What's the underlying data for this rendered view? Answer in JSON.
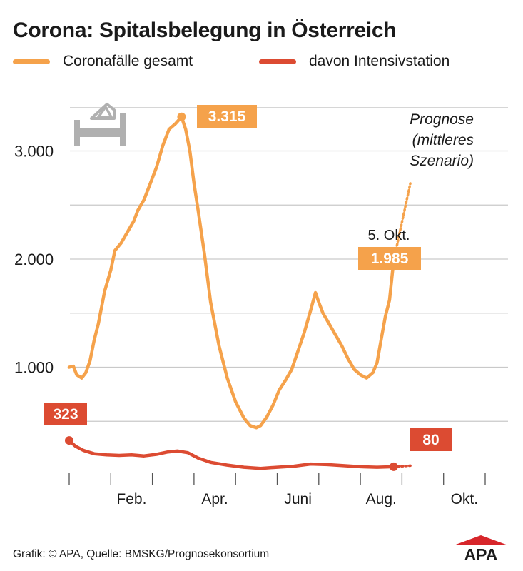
{
  "title": "Corona: Spitalsbelegung in Österreich",
  "colors": {
    "total": "#f5a24b",
    "icu": "#dc4b32",
    "grid": "#c9c9c9",
    "label_text": "#ffffff",
    "icon": "#b0b0b0",
    "logo_red": "#d7262b"
  },
  "footer": "Grafik: © APA, Quelle: BMSKG/Prognosekonsortium",
  "logo_text": "APA",
  "icon": "hospital-bed-icon",
  "chart_data": {
    "type": "line",
    "title": "Corona: Spitalsbelegung in Österreich",
    "xlabel": "",
    "ylabel": "",
    "ylim": [
      0,
      3400
    ],
    "grid": true,
    "legend_position": "top",
    "y_ticks": [
      1000,
      2000,
      3000
    ],
    "y_tick_labels": [
      "1.000",
      "2.000",
      "3.000"
    ],
    "x_ticks": [
      "Feb.",
      "Apr.",
      "Juni",
      "Aug.",
      "Okt."
    ],
    "series": [
      {
        "name": "Coronafälle gesamt",
        "color": "#f5a24b",
        "x_unit": "month index (Jan 1 = 0)",
        "points": [
          [
            0.0,
            1000
          ],
          [
            0.1,
            1010
          ],
          [
            0.18,
            930
          ],
          [
            0.3,
            900
          ],
          [
            0.4,
            950
          ],
          [
            0.5,
            1060
          ],
          [
            0.6,
            1250
          ],
          [
            0.7,
            1400
          ],
          [
            0.85,
            1700
          ],
          [
            1.0,
            1900
          ],
          [
            1.1,
            2080
          ],
          [
            1.25,
            2150
          ],
          [
            1.4,
            2250
          ],
          [
            1.55,
            2350
          ],
          [
            1.65,
            2450
          ],
          [
            1.8,
            2550
          ],
          [
            1.95,
            2700
          ],
          [
            2.1,
            2850
          ],
          [
            2.25,
            3050
          ],
          [
            2.4,
            3200
          ],
          [
            2.55,
            3250
          ],
          [
            2.7,
            3315
          ],
          [
            2.8,
            3200
          ],
          [
            2.9,
            3000
          ],
          [
            3.0,
            2700
          ],
          [
            3.1,
            2450
          ],
          [
            3.25,
            2050
          ],
          [
            3.4,
            1600
          ],
          [
            3.6,
            1200
          ],
          [
            3.8,
            900
          ],
          [
            4.0,
            680
          ],
          [
            4.2,
            530
          ],
          [
            4.35,
            460
          ],
          [
            4.5,
            440
          ],
          [
            4.6,
            460
          ],
          [
            4.75,
            540
          ],
          [
            4.9,
            650
          ],
          [
            5.05,
            790
          ],
          [
            5.2,
            880
          ],
          [
            5.35,
            980
          ],
          [
            5.5,
            1150
          ],
          [
            5.65,
            1320
          ],
          [
            5.8,
            1520
          ],
          [
            5.92,
            1690
          ],
          [
            6.0,
            1600
          ],
          [
            6.1,
            1500
          ],
          [
            6.25,
            1400
          ],
          [
            6.4,
            1300
          ],
          [
            6.55,
            1200
          ],
          [
            6.7,
            1080
          ],
          [
            6.85,
            980
          ],
          [
            7.0,
            930
          ],
          [
            7.15,
            900
          ],
          [
            7.3,
            950
          ],
          [
            7.4,
            1040
          ],
          [
            7.5,
            1260
          ],
          [
            7.6,
            1470
          ],
          [
            7.7,
            1620
          ],
          [
            7.8,
            1985
          ]
        ],
        "forecast": [
          [
            7.8,
            1985
          ],
          [
            8.2,
            2700
          ]
        ],
        "forecast_label": "Prognose\n(mittleres\nSzenario)"
      },
      {
        "name": "davon Intensivstation",
        "color": "#dc4b32",
        "x_unit": "month index (Jan 1 = 0)",
        "points": [
          [
            0.0,
            323
          ],
          [
            0.15,
            270
          ],
          [
            0.35,
            230
          ],
          [
            0.6,
            200
          ],
          [
            0.9,
            190
          ],
          [
            1.2,
            185
          ],
          [
            1.5,
            190
          ],
          [
            1.8,
            180
          ],
          [
            2.1,
            195
          ],
          [
            2.35,
            215
          ],
          [
            2.6,
            225
          ],
          [
            2.85,
            210
          ],
          [
            3.1,
            160
          ],
          [
            3.4,
            120
          ],
          [
            3.8,
            95
          ],
          [
            4.2,
            75
          ],
          [
            4.6,
            65
          ],
          [
            5.0,
            75
          ],
          [
            5.4,
            85
          ],
          [
            5.8,
            105
          ],
          [
            6.2,
            100
          ],
          [
            6.6,
            90
          ],
          [
            7.0,
            80
          ],
          [
            7.4,
            75
          ],
          [
            7.8,
            80
          ]
        ],
        "forecast": [
          [
            7.8,
            80
          ],
          [
            8.2,
            90
          ]
        ]
      }
    ],
    "annotations": [
      {
        "text": "3.315",
        "series": "Coronafälle gesamt",
        "x": 2.7,
        "y": 3315
      },
      {
        "text": "1.985",
        "series": "Coronafälle gesamt",
        "x": 7.8,
        "y": 1985,
        "date": "5. Okt."
      },
      {
        "text": "323",
        "series": "davon Intensivstation",
        "x": 0.0,
        "y": 323
      },
      {
        "text": "80",
        "series": "davon Intensivstation",
        "x": 7.8,
        "y": 80
      }
    ]
  }
}
